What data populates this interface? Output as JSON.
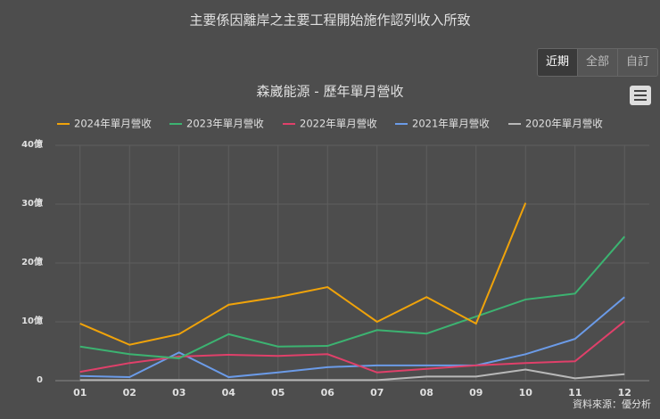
{
  "subtitle": "主要係因離岸之主要工程開始施作認列收入所致",
  "buttons": [
    "近期",
    "全部",
    "自訂"
  ],
  "source": "資料來源：優分析",
  "chart_data": {
    "type": "line",
    "title": "森崴能源 - 歷年單月營收",
    "categories": [
      "01",
      "02",
      "03",
      "04",
      "05",
      "06",
      "07",
      "08",
      "09",
      "10",
      "11",
      "12"
    ],
    "ylim": [
      0,
      40
    ],
    "yticks": [
      0,
      {
        "value": 10,
        "label": "10億"
      },
      {
        "value": 20,
        "label": "20億"
      },
      {
        "value": 30,
        "label": "30億"
      },
      {
        "value": 40,
        "label": "40億"
      }
    ],
    "grid": true,
    "series": [
      {
        "name": "2024年單月營收",
        "color": "#f0a30a",
        "values": [
          9.7,
          6.1,
          7.9,
          12.9,
          14.2,
          15.9,
          10.0,
          14.2,
          9.7,
          30.2,
          null,
          null
        ]
      },
      {
        "name": "2023年單月營收",
        "color": "#3cb371",
        "values": [
          5.8,
          4.5,
          3.8,
          7.9,
          5.8,
          5.9,
          8.6,
          8.0,
          10.9,
          13.8,
          14.8,
          24.5
        ]
      },
      {
        "name": "2022年單月營收",
        "color": "#e0406a",
        "values": [
          1.5,
          3.0,
          4.1,
          4.4,
          4.2,
          4.5,
          1.4,
          2.0,
          2.6,
          3.0,
          3.3,
          10.1
        ]
      },
      {
        "name": "2021年單月營收",
        "color": "#6b9be8",
        "values": [
          0.8,
          0.6,
          4.8,
          0.6,
          1.4,
          2.3,
          2.6,
          2.6,
          2.6,
          4.5,
          7.1,
          14.2
        ]
      },
      {
        "name": "2020年單月營收",
        "color": "#b8b8b8",
        "values": [
          0.1,
          0.1,
          0.1,
          0.1,
          0.1,
          0.1,
          0.1,
          0.7,
          0.7,
          1.9,
          0.4,
          1.1
        ]
      }
    ]
  }
}
